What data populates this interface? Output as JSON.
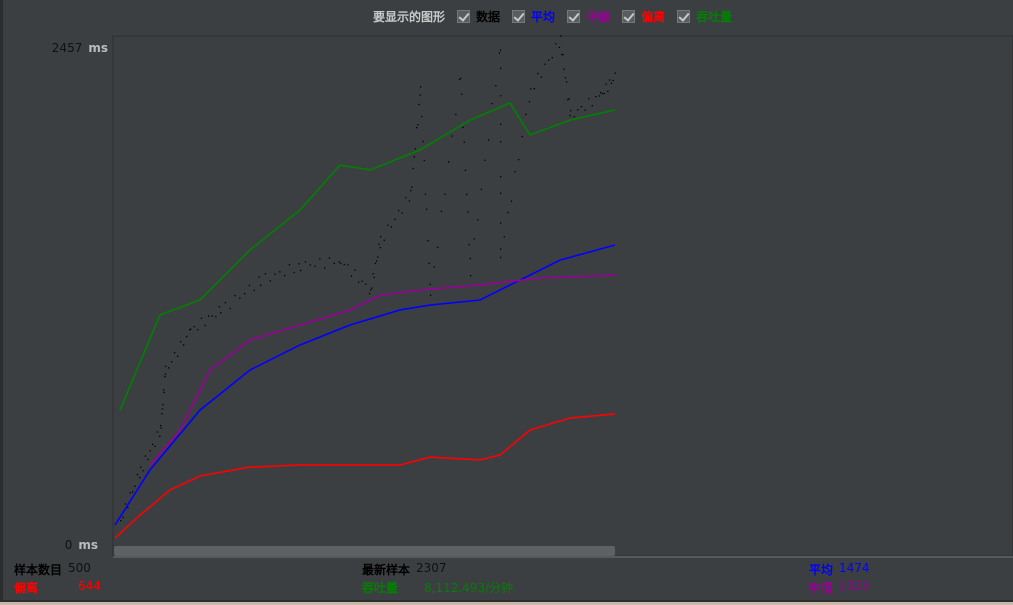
{
  "legend": {
    "title": "要显示的图形",
    "items": [
      {
        "label": "数据",
        "checked": true,
        "color": "#000000"
      },
      {
        "label": "平均",
        "checked": true,
        "color": "#0000ff"
      },
      {
        "label": "中值",
        "checked": true,
        "color": "#990099"
      },
      {
        "label": "偏离",
        "checked": true,
        "color": "#ff0000"
      },
      {
        "label": "吞吐量",
        "checked": true,
        "color": "#008000"
      }
    ]
  },
  "chart_data": {
    "type": "line",
    "ylim": [
      0,
      2457
    ],
    "xlim": [
      0,
      500
    ],
    "y_max_label": "2457",
    "y_min_label": "0",
    "y_unit": "ms",
    "series": [
      {
        "name": "平均",
        "color": "#0000ff",
        "points": [
          [
            0,
            98
          ],
          [
            35,
            369
          ],
          [
            85,
            663
          ],
          [
            135,
            860
          ],
          [
            185,
            983
          ],
          [
            235,
            1081
          ],
          [
            285,
            1155
          ],
          [
            315,
            1179
          ],
          [
            365,
            1204
          ],
          [
            405,
            1302
          ],
          [
            445,
            1400
          ],
          [
            500,
            1474
          ]
        ]
      },
      {
        "name": "中值",
        "color": "#990099",
        "points": [
          [
            35,
            393
          ],
          [
            65,
            565
          ],
          [
            95,
            860
          ],
          [
            135,
            1007
          ],
          [
            185,
            1081
          ],
          [
            235,
            1155
          ],
          [
            265,
            1228
          ],
          [
            305,
            1253
          ],
          [
            365,
            1278
          ],
          [
            425,
            1312
          ],
          [
            500,
            1326
          ]
        ]
      },
      {
        "name": "偏离",
        "color": "#ff0000",
        "points": [
          [
            0,
            34
          ],
          [
            25,
            147
          ],
          [
            55,
            270
          ],
          [
            85,
            339
          ],
          [
            135,
            383
          ],
          [
            185,
            393
          ],
          [
            285,
            393
          ],
          [
            315,
            432
          ],
          [
            365,
            418
          ],
          [
            385,
            442
          ],
          [
            415,
            565
          ],
          [
            455,
            624
          ],
          [
            500,
            644
          ]
        ]
      },
      {
        "name": "吞吐量",
        "color": "#008000",
        "points": [
          [
            5,
            663
          ],
          [
            45,
            1130
          ],
          [
            85,
            1204
          ],
          [
            135,
            1450
          ],
          [
            185,
            1646
          ],
          [
            225,
            1867
          ],
          [
            255,
            1843
          ],
          [
            305,
            1941
          ],
          [
            355,
            2088
          ],
          [
            395,
            2172
          ],
          [
            415,
            2015
          ],
          [
            455,
            2088
          ],
          [
            500,
            2138
          ]
        ]
      },
      {
        "name": "数据",
        "color": "#000000",
        "scatter": true,
        "points": [
          [
            5,
            123
          ],
          [
            25,
            369
          ],
          [
            45,
            565
          ],
          [
            50,
            860
          ],
          [
            75,
            1057
          ],
          [
            105,
            1155
          ],
          [
            145,
            1302
          ],
          [
            185,
            1376
          ],
          [
            225,
            1400
          ],
          [
            255,
            1253
          ],
          [
            265,
            1499
          ],
          [
            295,
            1720
          ],
          [
            305,
            2236
          ],
          [
            315,
            1228
          ],
          [
            345,
            2310
          ],
          [
            355,
            1351
          ],
          [
            385,
            2457
          ],
          [
            385,
            1425
          ],
          [
            415,
            2236
          ],
          [
            445,
            2482
          ],
          [
            455,
            2113
          ],
          [
            485,
            2211
          ],
          [
            500,
            2307
          ]
        ]
      }
    ]
  },
  "stats": {
    "samples_label": "样本数目",
    "samples": "500",
    "latest_label": "最新样本",
    "latest": "2307",
    "average_label": "平均",
    "average": "1474",
    "deviation_label": "偏离",
    "deviation": "644",
    "throughput_label": "吞吐量",
    "throughput": "8,112.493/分钟",
    "median_label": "中值",
    "median": "1326"
  }
}
